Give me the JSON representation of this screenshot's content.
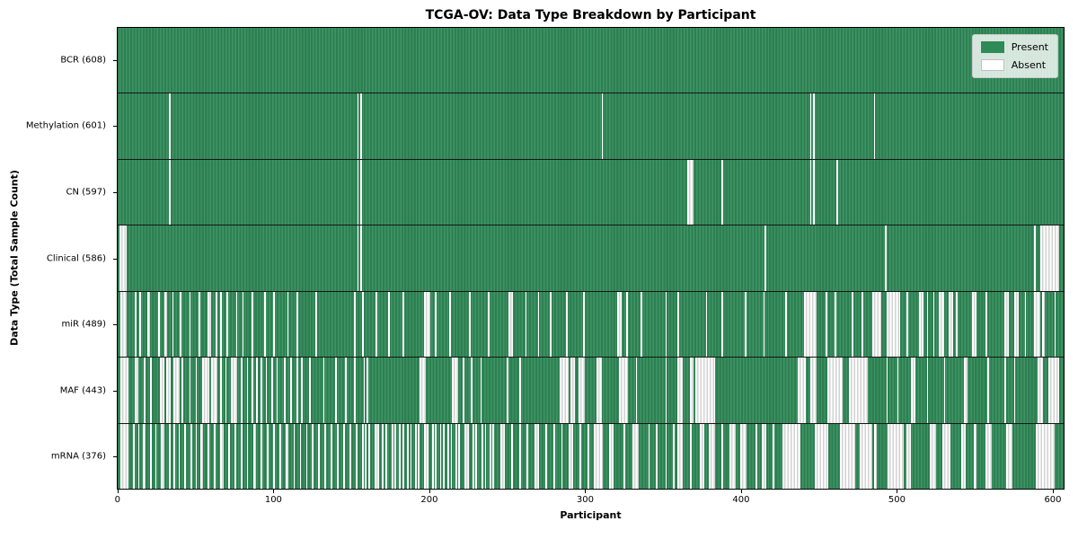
{
  "chart_data": {
    "type": "heatmap",
    "title": "TCGA-OV: Data Type Breakdown by Participant",
    "xlabel": "Participant",
    "ylabel": "Data Type (Total Sample Count)",
    "legend": [
      {
        "label": "Present",
        "color": "#2e8b57"
      },
      {
        "label": "Absent",
        "color": "#ffffff"
      }
    ],
    "legend_position": "upper right",
    "colors": {
      "present": "#2e8b57",
      "absent": "#ffffff",
      "row_divider": "#151515",
      "legend_bg": "#dfe7df"
    },
    "n_participants": 608,
    "x_axis_range": [
      -0.5,
      607.5
    ],
    "x_ticks": [
      0,
      100,
      200,
      300,
      400,
      500,
      600
    ],
    "rows": [
      {
        "name": "BCR",
        "label": "BCR (608)",
        "present_count": 608,
        "absent_ranges": []
      },
      {
        "name": "Methylation",
        "label": "Methylation (601)",
        "present_count": 601,
        "absent_ranges": [
          [
            33,
            33
          ],
          [
            154,
            154
          ],
          [
            156,
            156
          ],
          [
            311,
            311
          ],
          [
            445,
            445
          ],
          [
            447,
            447
          ],
          [
            486,
            486
          ]
        ]
      },
      {
        "name": "CN",
        "label": "CN (597)",
        "present_count": 597,
        "absent_ranges": [
          [
            33,
            33
          ],
          [
            154,
            154
          ],
          [
            156,
            156
          ],
          [
            366,
            369
          ],
          [
            388,
            388
          ],
          [
            445,
            445
          ],
          [
            447,
            447
          ],
          [
            462,
            462
          ]
        ]
      },
      {
        "name": "Clinical",
        "label": "Clinical (586)",
        "present_count": 586,
        "absent_ranges": [
          [
            1,
            5
          ],
          [
            154,
            154
          ],
          [
            156,
            156
          ],
          [
            416,
            416
          ],
          [
            493,
            493
          ],
          [
            589,
            589
          ],
          [
            593,
            604
          ]
        ]
      },
      {
        "name": "miR",
        "label": "miR (489)",
        "present_count": 489,
        "absent_ranges": [
          [
            2,
            5
          ],
          [
            11,
            11
          ],
          [
            14,
            14
          ],
          [
            19,
            20
          ],
          [
            26,
            26
          ],
          [
            30,
            31
          ],
          [
            35,
            35
          ],
          [
            40,
            40
          ],
          [
            46,
            46
          ],
          [
            52,
            52
          ],
          [
            58,
            59
          ],
          [
            63,
            63
          ],
          [
            66,
            66
          ],
          [
            70,
            70
          ],
          [
            76,
            76
          ],
          [
            80,
            80
          ],
          [
            86,
            86
          ],
          [
            94,
            94
          ],
          [
            100,
            100
          ],
          [
            109,
            109
          ],
          [
            115,
            115
          ],
          [
            127,
            127
          ],
          [
            152,
            152
          ],
          [
            157,
            157
          ],
          [
            166,
            166
          ],
          [
            174,
            174
          ],
          [
            183,
            183
          ],
          [
            197,
            200
          ],
          [
            204,
            204
          ],
          [
            213,
            213
          ],
          [
            226,
            226
          ],
          [
            238,
            238
          ],
          [
            251,
            253
          ],
          [
            262,
            262
          ],
          [
            270,
            270
          ],
          [
            278,
            278
          ],
          [
            288,
            288
          ],
          [
            299,
            299
          ],
          [
            321,
            323
          ],
          [
            327,
            327
          ],
          [
            336,
            336
          ],
          [
            352,
            352
          ],
          [
            360,
            360
          ],
          [
            378,
            378
          ],
          [
            388,
            388
          ],
          [
            403,
            403
          ],
          [
            415,
            415
          ],
          [
            429,
            429
          ],
          [
            441,
            448
          ],
          [
            455,
            455
          ],
          [
            461,
            461
          ],
          [
            472,
            472
          ],
          [
            478,
            478
          ],
          [
            485,
            490
          ],
          [
            494,
            502
          ],
          [
            507,
            507
          ],
          [
            515,
            517
          ],
          [
            520,
            520
          ],
          [
            524,
            524
          ],
          [
            528,
            530
          ],
          [
            534,
            536
          ],
          [
            539,
            539
          ],
          [
            549,
            551
          ],
          [
            558,
            558
          ],
          [
            570,
            572
          ],
          [
            576,
            578
          ],
          [
            583,
            583
          ],
          [
            589,
            592
          ],
          [
            594,
            595
          ],
          [
            602,
            602
          ]
        ]
      },
      {
        "name": "MAF",
        "label": "MAF (443)",
        "present_count": 443,
        "absent_ranges": [
          [
            2,
            6
          ],
          [
            11,
            12
          ],
          [
            17,
            17
          ],
          [
            21,
            21
          ],
          [
            27,
            29
          ],
          [
            31,
            33
          ],
          [
            36,
            39
          ],
          [
            41,
            41
          ],
          [
            46,
            46
          ],
          [
            50,
            50
          ],
          [
            54,
            58
          ],
          [
            60,
            63
          ],
          [
            66,
            66
          ],
          [
            69,
            69
          ],
          [
            73,
            76
          ],
          [
            79,
            79
          ],
          [
            83,
            83
          ],
          [
            86,
            86
          ],
          [
            89,
            89
          ],
          [
            92,
            92
          ],
          [
            95,
            95
          ],
          [
            99,
            99
          ],
          [
            102,
            102
          ],
          [
            107,
            107
          ],
          [
            111,
            111
          ],
          [
            115,
            115
          ],
          [
            118,
            118
          ],
          [
            123,
            123
          ],
          [
            132,
            132
          ],
          [
            140,
            140
          ],
          [
            146,
            146
          ],
          [
            152,
            152
          ],
          [
            158,
            158
          ],
          [
            160,
            160
          ],
          [
            194,
            197
          ],
          [
            215,
            218
          ],
          [
            222,
            222
          ],
          [
            227,
            227
          ],
          [
            233,
            233
          ],
          [
            250,
            250
          ],
          [
            258,
            258
          ],
          [
            284,
            289
          ],
          [
            291,
            293
          ],
          [
            296,
            299
          ],
          [
            308,
            310
          ],
          [
            322,
            327
          ],
          [
            333,
            333
          ],
          [
            352,
            352
          ],
          [
            360,
            362
          ],
          [
            368,
            369
          ],
          [
            371,
            383
          ],
          [
            437,
            441
          ],
          [
            445,
            448
          ],
          [
            456,
            465
          ],
          [
            470,
            481
          ],
          [
            494,
            494
          ],
          [
            501,
            501
          ],
          [
            510,
            512
          ],
          [
            520,
            520
          ],
          [
            531,
            531
          ],
          [
            544,
            545
          ],
          [
            559,
            559
          ],
          [
            570,
            570
          ],
          [
            576,
            576
          ],
          [
            591,
            594
          ],
          [
            598,
            604
          ]
        ]
      },
      {
        "name": "mRNA",
        "label": "mRNA (376)",
        "present_count": 376,
        "absent_ranges": [
          [
            2,
            6
          ],
          [
            10,
            10
          ],
          [
            13,
            13
          ],
          [
            16,
            17
          ],
          [
            21,
            21
          ],
          [
            24,
            24
          ],
          [
            28,
            29
          ],
          [
            33,
            33
          ],
          [
            36,
            36
          ],
          [
            39,
            39
          ],
          [
            43,
            43
          ],
          [
            47,
            47
          ],
          [
            50,
            50
          ],
          [
            53,
            54
          ],
          [
            58,
            58
          ],
          [
            62,
            62
          ],
          [
            66,
            67
          ],
          [
            71,
            71
          ],
          [
            75,
            75
          ],
          [
            79,
            79
          ],
          [
            83,
            83
          ],
          [
            87,
            88
          ],
          [
            92,
            92
          ],
          [
            96,
            96
          ],
          [
            100,
            100
          ],
          [
            104,
            104
          ],
          [
            108,
            109
          ],
          [
            113,
            113
          ],
          [
            117,
            117
          ],
          [
            121,
            121
          ],
          [
            125,
            125
          ],
          [
            129,
            129
          ],
          [
            133,
            133
          ],
          [
            137,
            137
          ],
          [
            141,
            141
          ],
          [
            145,
            145
          ],
          [
            149,
            149
          ],
          [
            153,
            153
          ],
          [
            157,
            157
          ],
          [
            159,
            159
          ],
          [
            161,
            161
          ],
          [
            165,
            167
          ],
          [
            170,
            170
          ],
          [
            172,
            172
          ],
          [
            176,
            176
          ],
          [
            178,
            178
          ],
          [
            181,
            181
          ],
          [
            183,
            183
          ],
          [
            186,
            186
          ],
          [
            188,
            188
          ],
          [
            191,
            191
          ],
          [
            193,
            193
          ],
          [
            197,
            199
          ],
          [
            202,
            202
          ],
          [
            204,
            204
          ],
          [
            207,
            207
          ],
          [
            209,
            209
          ],
          [
            212,
            212
          ],
          [
            214,
            214
          ],
          [
            217,
            217
          ],
          [
            219,
            219
          ],
          [
            223,
            225
          ],
          [
            228,
            228
          ],
          [
            230,
            230
          ],
          [
            234,
            234
          ],
          [
            236,
            236
          ],
          [
            239,
            239
          ],
          [
            241,
            241
          ],
          [
            246,
            248
          ],
          [
            253,
            253
          ],
          [
            258,
            258
          ],
          [
            263,
            263
          ],
          [
            268,
            270
          ],
          [
            275,
            275
          ],
          [
            280,
            280
          ],
          [
            285,
            285
          ],
          [
            290,
            292
          ],
          [
            297,
            297
          ],
          [
            302,
            302
          ],
          [
            306,
            311
          ],
          [
            316,
            318
          ],
          [
            325,
            325
          ],
          [
            331,
            334
          ],
          [
            341,
            341
          ],
          [
            346,
            346
          ],
          [
            352,
            352
          ],
          [
            357,
            357
          ],
          [
            360,
            362
          ],
          [
            368,
            368
          ],
          [
            374,
            376
          ],
          [
            380,
            383
          ],
          [
            388,
            388
          ],
          [
            393,
            396
          ],
          [
            400,
            403
          ],
          [
            410,
            410
          ],
          [
            414,
            416
          ],
          [
            421,
            421
          ],
          [
            427,
            438
          ],
          [
            448,
            456
          ],
          [
            464,
            473
          ],
          [
            477,
            484
          ],
          [
            486,
            487
          ],
          [
            495,
            504
          ],
          [
            507,
            509
          ],
          [
            522,
            525
          ],
          [
            530,
            534
          ],
          [
            542,
            544
          ],
          [
            550,
            551
          ],
          [
            558,
            561
          ],
          [
            571,
            574
          ],
          [
            590,
            601
          ]
        ]
      }
    ]
  }
}
